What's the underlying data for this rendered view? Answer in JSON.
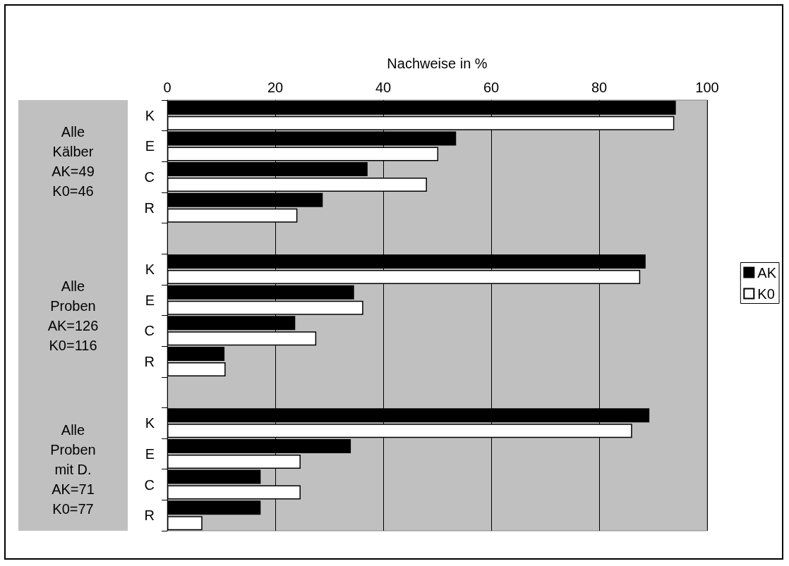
{
  "chart_data": {
    "type": "bar",
    "orientation": "horizontal",
    "xlabel": "Nachweise in %",
    "categories": [
      "K",
      "E",
      "C",
      "R",
      null,
      "K",
      "E",
      "C",
      "R",
      null,
      "K",
      "E",
      "C",
      "R"
    ],
    "series": [
      {
        "name": "AK",
        "color": "#000000",
        "values": [
          94.2,
          53.5,
          37.1,
          28.8,
          null,
          88.6,
          34.6,
          23.7,
          10.6,
          null,
          89.3,
          34.0,
          17.3,
          17.3
        ]
      },
      {
        "name": "K0",
        "color": "#ffffff",
        "values": [
          93.9,
          50.2,
          48.1,
          24.1,
          null,
          87.6,
          36.3,
          27.6,
          10.8,
          null,
          86.1,
          24.7,
          24.7,
          6.5
        ]
      }
    ],
    "xlim": [
      0,
      100
    ],
    "xticks": [
      0,
      20,
      40,
      60,
      80,
      100
    ],
    "grid": "x",
    "legend": "right",
    "annotations": [
      "Alle\nKälber\nAK=49\nK0=46",
      "Alle\nProben\nAK=126\nK0=116",
      "Alle\nProben\nmit D.\nAK=71\nK0=77"
    ]
  }
}
